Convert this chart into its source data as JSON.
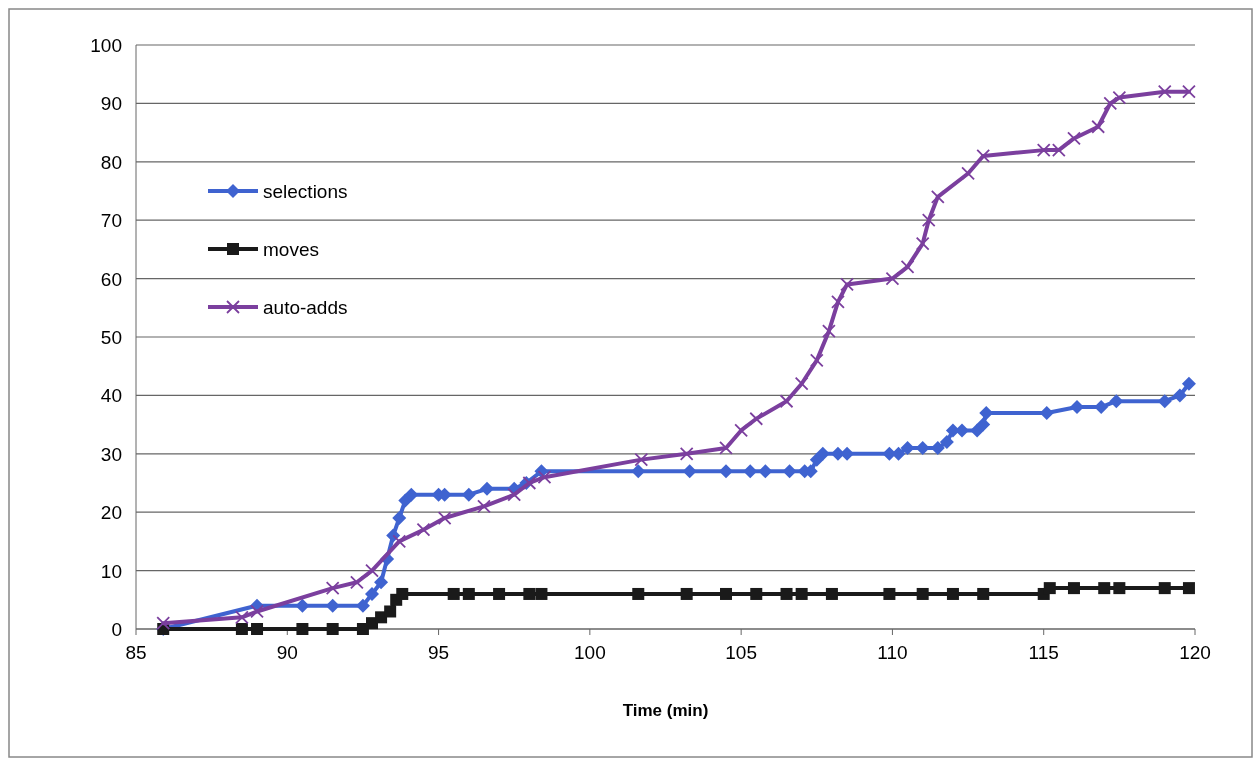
{
  "chart_data": {
    "type": "line",
    "xlabel": "Time (min)",
    "xlim": [
      85,
      120
    ],
    "xticks": [
      85,
      90,
      95,
      100,
      105,
      110,
      115,
      120
    ],
    "ylim": [
      0,
      100
    ],
    "yticks": [
      0,
      10,
      20,
      30,
      40,
      50,
      60,
      70,
      80,
      90,
      100
    ],
    "grid": "y",
    "legend": "top left",
    "series": [
      {
        "name": "selections",
        "color": "#3f63d0",
        "marker": "diamond",
        "x": [
          85.9,
          89,
          90.5,
          91.5,
          92.5,
          92.8,
          93.1,
          93.3,
          93.5,
          93.7,
          93.9,
          94.1,
          95,
          95.2,
          96,
          96.6,
          97.5,
          97.9,
          98.4,
          101.6,
          103.3,
          104.5,
          105.3,
          105.8,
          106.6,
          107.1,
          107.3,
          107.5,
          107.7,
          108.2,
          108.5,
          109.9,
          110.2,
          110.5,
          111,
          111.5,
          111.8,
          112,
          112.3,
          112.8,
          113,
          113.1,
          115.1,
          116.1,
          116.9,
          117.4,
          119,
          119.5,
          119.8
        ],
        "values": [
          0,
          4,
          4,
          4,
          4,
          6,
          8,
          12,
          16,
          19,
          22,
          23,
          23,
          23,
          23,
          24,
          24,
          25,
          27,
          27,
          27,
          27,
          27,
          27,
          27,
          27,
          27,
          29,
          30,
          30,
          30,
          30,
          30,
          31,
          31,
          31,
          32,
          34,
          34,
          34,
          35,
          37,
          37,
          38,
          38,
          39,
          39,
          40,
          42
        ]
      },
      {
        "name": "moves",
        "color": "#1a1a1a",
        "marker": "square",
        "x": [
          85.9,
          88.5,
          89,
          90.5,
          91.5,
          92.5,
          92.8,
          93.1,
          93.4,
          93.6,
          93.8,
          95.5,
          96,
          97,
          98,
          98.4,
          101.6,
          103.2,
          104.5,
          105.5,
          106.5,
          107,
          108,
          109.9,
          111,
          112,
          113,
          115,
          115.2,
          116,
          117,
          117.5,
          119,
          119.8
        ],
        "values": [
          0,
          0,
          0,
          0,
          0,
          0,
          1,
          2,
          3,
          5,
          6,
          6,
          6,
          6,
          6,
          6,
          6,
          6,
          6,
          6,
          6,
          6,
          6,
          6,
          6,
          6,
          6,
          6,
          7,
          7,
          7,
          7,
          7,
          7
        ]
      },
      {
        "name": "auto-adds",
        "color": "#7b3f9e",
        "marker": "cross",
        "x": [
          85.9,
          88.5,
          89,
          91.5,
          92.3,
          92.8,
          93.7,
          94.5,
          95.2,
          96.5,
          97.5,
          98,
          98.5,
          101.7,
          103.2,
          104.5,
          105,
          105.5,
          106.5,
          107,
          107.5,
          107.9,
          108.2,
          108.5,
          110,
          110.5,
          111,
          111.2,
          111.5,
          112.5,
          113,
          115,
          115.5,
          116,
          116.8,
          117.2,
          117.5,
          119,
          119.8
        ],
        "values": [
          1,
          2,
          3,
          7,
          8,
          10,
          15,
          17,
          19,
          21,
          23,
          25,
          26,
          29,
          30,
          31,
          34,
          36,
          39,
          42,
          46,
          51,
          56,
          59,
          60,
          62,
          66,
          70,
          74,
          78,
          81,
          82,
          82,
          84,
          86,
          90,
          91,
          92,
          92
        ]
      }
    ]
  }
}
